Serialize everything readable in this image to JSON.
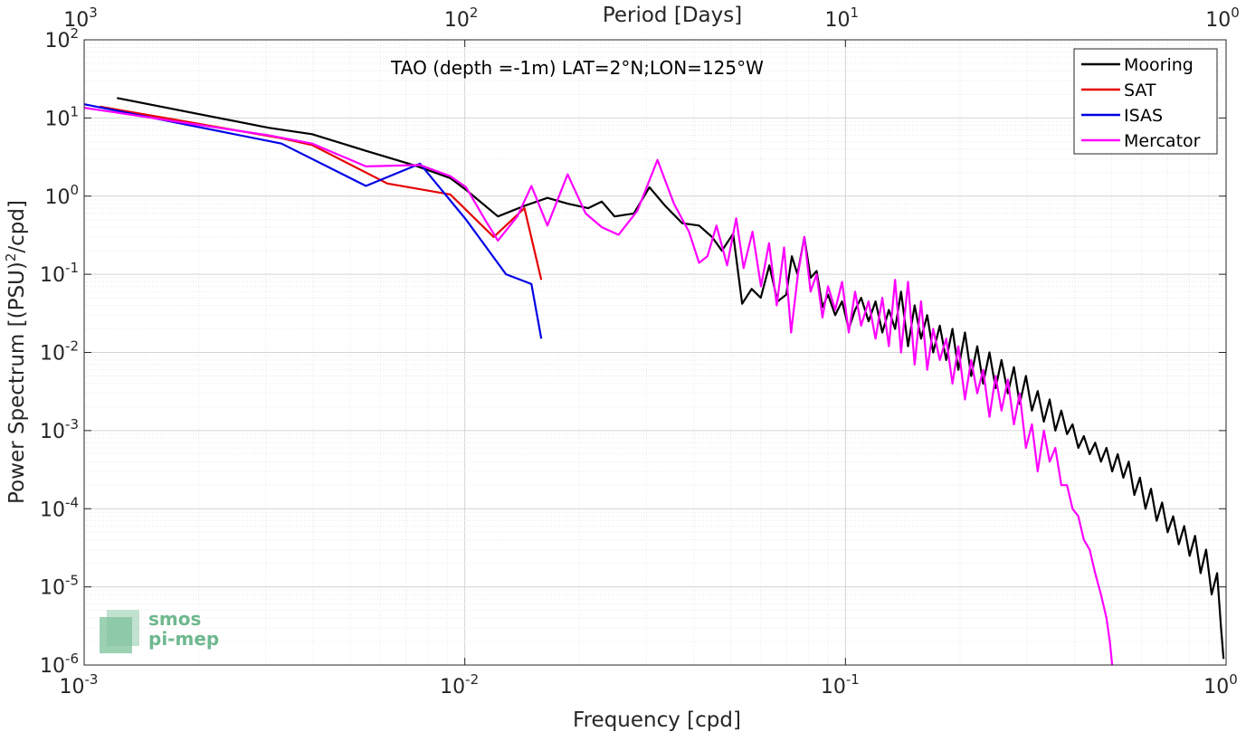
{
  "chart_data": {
    "type": "line",
    "title": "TAO (depth =-1m) LAT=2°N;LON=125°W",
    "xlabel": "Frequency [cpd]",
    "ylabel": "Power Spectrum [(PSU)",
    "ylabel_sup": "2",
    "ylabel_tail": "/cpd]",
    "x2label": "Period [Days]",
    "xscale": "log",
    "yscale": "log",
    "xlim": [
      0.001,
      1
    ],
    "ylim": [
      1e-06,
      100
    ],
    "grid": true,
    "minor_grid": true,
    "legend_position": "top-right",
    "x_ticks": [
      {
        "value": 0.001,
        "base": "10",
        "exp": "-3"
      },
      {
        "value": 0.01,
        "base": "10",
        "exp": "-2"
      },
      {
        "value": 0.1,
        "base": "10",
        "exp": "-1"
      },
      {
        "value": 1,
        "base": "10",
        "exp": "0"
      }
    ],
    "x2_ticks": [
      {
        "value": 0.001,
        "base": "10",
        "exp": "3"
      },
      {
        "value": 0.01,
        "base": "10",
        "exp": "2"
      },
      {
        "value": 0.1,
        "base": "10",
        "exp": "1"
      },
      {
        "value": 1,
        "base": "10",
        "exp": "0"
      }
    ],
    "y_ticks": [
      {
        "value": 100,
        "base": "10",
        "exp": "2"
      },
      {
        "value": 10,
        "base": "10",
        "exp": "1"
      },
      {
        "value": 1,
        "base": "10",
        "exp": "0"
      },
      {
        "value": 0.1,
        "base": "10",
        "exp": "-1"
      },
      {
        "value": 0.01,
        "base": "10",
        "exp": "-2"
      },
      {
        "value": 0.001,
        "base": "10",
        "exp": "-3"
      },
      {
        "value": 0.0001,
        "base": "10",
        "exp": "-4"
      },
      {
        "value": 1e-05,
        "base": "10",
        "exp": "-5"
      },
      {
        "value": 1e-06,
        "base": "10",
        "exp": "-6"
      }
    ],
    "series": [
      {
        "name": "Mooring",
        "color": "#000000",
        "x": [
          0.00122,
          0.00305,
          0.00397,
          0.0055,
          0.00733,
          0.00916,
          0.01008,
          0.01222,
          0.01435,
          0.01649,
          0.01863,
          0.02108,
          0.02291,
          0.02475,
          0.0278,
          0.03055,
          0.0336,
          0.03727,
          0.04125,
          0.04461,
          0.04736,
          0.0507,
          0.05355,
          0.0567,
          0.0599,
          0.0631,
          0.0663,
          0.0699,
          0.0723,
          0.0748,
          0.078,
          0.081,
          0.084,
          0.087,
          0.09,
          0.094,
          0.098,
          0.102,
          0.106,
          0.11,
          0.115,
          0.12,
          0.125,
          0.13,
          0.135,
          0.14,
          0.146,
          0.152,
          0.158,
          0.164,
          0.17,
          0.177,
          0.184,
          0.191,
          0.198,
          0.206,
          0.214,
          0.222,
          0.23,
          0.239,
          0.248,
          0.257,
          0.267,
          0.277,
          0.287,
          0.298,
          0.309,
          0.32,
          0.332,
          0.344,
          0.356,
          0.369,
          0.382,
          0.395,
          0.409,
          0.423,
          0.438,
          0.453,
          0.469,
          0.485,
          0.502,
          0.519,
          0.537,
          0.555,
          0.574,
          0.594,
          0.614,
          0.635,
          0.657,
          0.679,
          0.702,
          0.726,
          0.751,
          0.776,
          0.802,
          0.829,
          0.857,
          0.886,
          0.916,
          0.947,
          0.97,
          0.985
        ],
        "y": [
          18.0,
          7.5,
          6.2,
          3.8,
          2.5,
          1.7,
          1.2,
          0.55,
          0.75,
          0.95,
          0.8,
          0.7,
          0.85,
          0.55,
          0.6,
          1.3,
          0.75,
          0.45,
          0.42,
          0.3,
          0.2,
          0.33,
          0.042,
          0.065,
          0.05,
          0.13,
          0.045,
          0.055,
          0.17,
          0.1,
          0.3,
          0.09,
          0.11,
          0.038,
          0.055,
          0.03,
          0.045,
          0.02,
          0.035,
          0.05,
          0.025,
          0.045,
          0.018,
          0.035,
          0.02,
          0.06,
          0.012,
          0.04,
          0.015,
          0.03,
          0.01,
          0.022,
          0.008,
          0.02,
          0.006,
          0.018,
          0.005,
          0.012,
          0.004,
          0.01,
          0.0035,
          0.008,
          0.003,
          0.0065,
          0.0022,
          0.005,
          0.0018,
          0.0032,
          0.0013,
          0.0025,
          0.001,
          0.0018,
          0.0009,
          0.0012,
          0.0006,
          0.00085,
          0.0005,
          0.0007,
          0.0004,
          0.0006,
          0.0003,
          0.0005,
          0.00025,
          0.0004,
          0.00015,
          0.00025,
          0.0001,
          0.00018,
          7e-05,
          0.00012,
          5e-05,
          8e-05,
          3.5e-05,
          6e-05,
          2.5e-05,
          4.5e-05,
          1.5e-05,
          3e-05,
          8e-06,
          1.5e-05,
          3e-06,
          1.2e-06
        ]
      },
      {
        "name": "SAT",
        "color": "#e60000",
        "x": [
          0.0011,
          0.0033,
          0.00397,
          0.00626,
          0.00916,
          0.01191,
          0.01435,
          0.01588
        ],
        "y": [
          14.0,
          5.5,
          4.5,
          1.45,
          1.05,
          0.3,
          0.7,
          0.085
        ]
      },
      {
        "name": "ISAS",
        "color": "#0000e6",
        "x": [
          0.001,
          0.0033,
          0.0055,
          0.00763,
          0.01008,
          0.01283,
          0.01496,
          0.01588
        ],
        "y": [
          15.0,
          4.7,
          1.35,
          2.6,
          0.5,
          0.1,
          0.075,
          0.015
        ]
      },
      {
        "name": "Mercator",
        "color": "#ff00ff",
        "x": [
          0.001,
          0.00305,
          0.00397,
          0.0055,
          0.00763,
          0.00916,
          0.01008,
          0.0113,
          0.01222,
          0.01374,
          0.01496,
          0.01649,
          0.01863,
          0.02077,
          0.02291,
          0.02535,
          0.02841,
          0.03208,
          0.03544,
          0.0388,
          0.04125,
          0.04339,
          0.04583,
          0.04889,
          0.05164,
          0.054,
          0.057,
          0.06,
          0.063,
          0.066,
          0.069,
          0.072,
          0.075,
          0.078,
          0.081,
          0.084,
          0.087,
          0.09,
          0.094,
          0.098,
          0.102,
          0.106,
          0.11,
          0.115,
          0.12,
          0.125,
          0.13,
          0.135,
          0.14,
          0.146,
          0.152,
          0.158,
          0.164,
          0.17,
          0.177,
          0.184,
          0.191,
          0.198,
          0.206,
          0.214,
          0.222,
          0.23,
          0.239,
          0.248,
          0.257,
          0.267,
          0.277,
          0.287,
          0.298,
          0.309,
          0.32,
          0.332,
          0.344,
          0.356,
          0.369,
          0.382,
          0.395,
          0.409,
          0.423,
          0.438,
          0.453,
          0.469,
          0.485,
          0.495,
          0.502
        ],
        "y": [
          13.5,
          6.0,
          4.7,
          2.4,
          2.5,
          1.8,
          1.3,
          0.5,
          0.27,
          0.55,
          1.35,
          0.42,
          1.9,
          0.6,
          0.4,
          0.32,
          0.65,
          2.9,
          0.8,
          0.35,
          0.14,
          0.17,
          0.42,
          0.13,
          0.52,
          0.12,
          0.35,
          0.07,
          0.25,
          0.04,
          0.22,
          0.018,
          0.1,
          0.3,
          0.06,
          0.1,
          0.028,
          0.07,
          0.035,
          0.08,
          0.018,
          0.06,
          0.022,
          0.045,
          0.015,
          0.05,
          0.012,
          0.085,
          0.01,
          0.08,
          0.007,
          0.045,
          0.006,
          0.02,
          0.008,
          0.015,
          0.004,
          0.012,
          0.0025,
          0.008,
          0.003,
          0.006,
          0.0015,
          0.005,
          0.0018,
          0.0045,
          0.0012,
          0.003,
          0.0006,
          0.0012,
          0.0003,
          0.001,
          0.0004,
          0.0006,
          0.0002,
          0.0002,
          0.0001,
          8e-05,
          4e-05,
          3e-05,
          1.5e-05,
          8e-06,
          4e-06,
          2e-06,
          9e-07
        ]
      }
    ]
  },
  "logo": {
    "line1": "smos",
    "line2": "pi-mep"
  }
}
